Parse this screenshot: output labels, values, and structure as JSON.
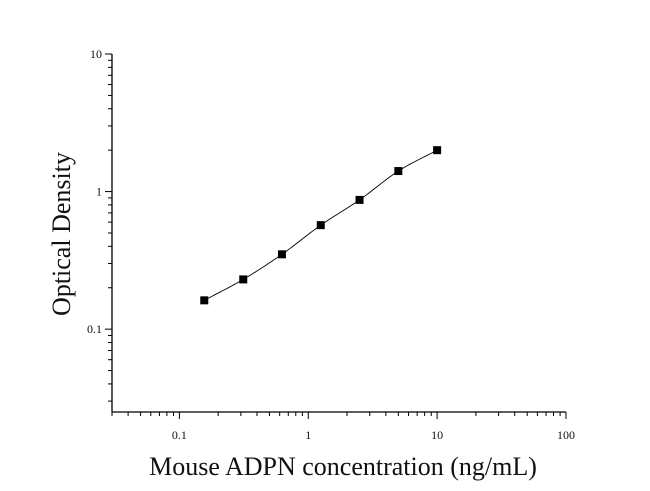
{
  "chart_data": {
    "type": "scatter",
    "xlabel": "Mouse ADPN concentration (ng/mL)",
    "ylabel": "Optical Density",
    "x_scale": "log",
    "y_scale": "log",
    "xlim": [
      0.03,
      100
    ],
    "ylim": [
      0.025,
      10
    ],
    "grid": false,
    "x_ticks": [
      {
        "value": 0.1,
        "label": "0.1"
      },
      {
        "value": 1,
        "label": "1"
      },
      {
        "value": 10,
        "label": "10"
      },
      {
        "value": 100,
        "label": "100"
      }
    ],
    "y_ticks": [
      {
        "value": 0.1,
        "label": "0.1"
      },
      {
        "value": 1,
        "label": "1"
      },
      {
        "value": 10,
        "label": "10"
      }
    ],
    "series": [
      {
        "x": [
          0.156,
          0.313,
          0.625,
          1.25,
          2.5,
          5,
          10
        ],
        "y": [
          0.162,
          0.23,
          0.35,
          0.57,
          0.87,
          1.41,
          2.0
        ],
        "marker": "square",
        "fit_line": true,
        "color": "#000000"
      }
    ]
  }
}
